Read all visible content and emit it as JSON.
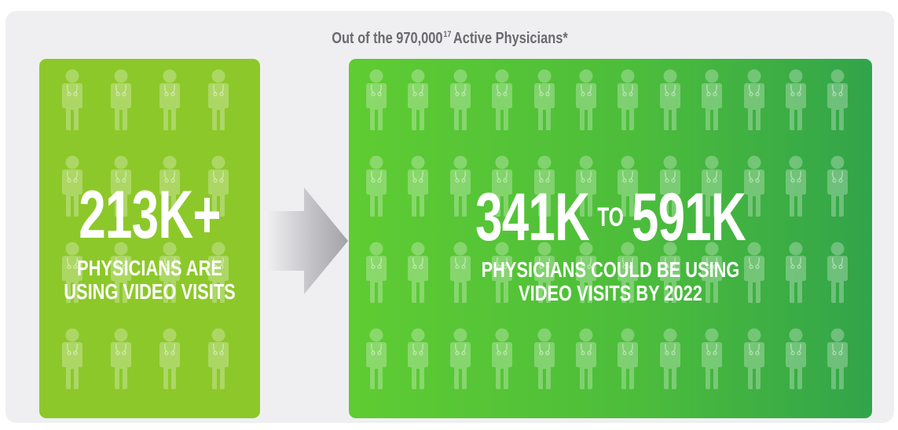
{
  "header": {
    "title_prefix": "Out of the 970,000",
    "footnote": "17",
    "title_suffix": "Active Physicians*"
  },
  "current": {
    "number": "213K+",
    "caption_line1": "PHYSICIANS ARE",
    "caption_line2": "USING VIDEO VISITS",
    "color": "#8dc82a"
  },
  "projection": {
    "low": "341K",
    "connector": "TO",
    "high": "591K",
    "caption_line1": "PHYSICIANS COULD BE USING",
    "caption_line2": "VIDEO VISITS BY 2022",
    "color_start": "#5fcc32",
    "color_end": "#32a44a"
  },
  "icons": {
    "person": "physician-icon",
    "transition": "arrow-right-icon"
  }
}
